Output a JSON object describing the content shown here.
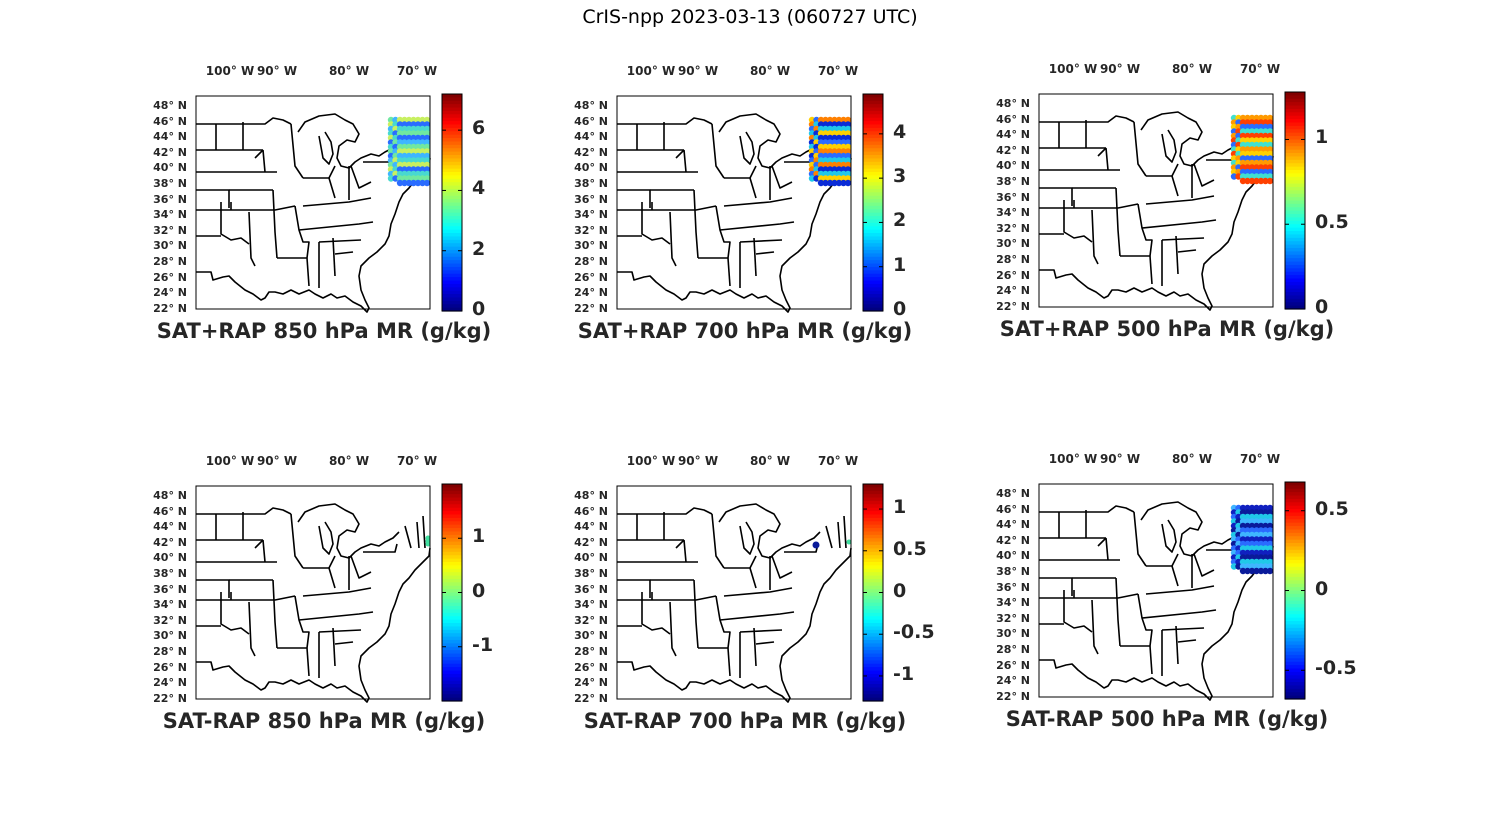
{
  "figure_title": "CrIS-npp 2023-03-13 (060727 UTC)",
  "lon_labels": [
    "100° W",
    "90° W",
    "80° W",
    "70° W"
  ],
  "lat_labels": [
    "48° N",
    "46° N",
    "44° N",
    "42° N",
    "40° N",
    "38° N",
    "36° N",
    "34° N",
    "32° N",
    "30° N",
    "28° N",
    "26° N",
    "24° N",
    "22° N"
  ],
  "colormap": "jet",
  "panels": [
    {
      "title": "SAT+RAP 850 hPa MR (g/kg)",
      "cb_ticks": [
        "6",
        "4",
        "2",
        "0"
      ],
      "cb_range": [
        0,
        7.2
      ],
      "cb_tick_values": [
        6,
        4,
        2,
        0
      ],
      "overlay": "swath",
      "overlay_colors": [
        "#2a6cff",
        "#3fb6ff",
        "#48d9d0",
        "#70e8a0",
        "#c8f060"
      ]
    },
    {
      "title": "SAT+RAP 700 hPa MR (g/kg)",
      "cb_ticks": [
        "4",
        "3",
        "2",
        "1",
        "0"
      ],
      "cb_range": [
        0,
        4.9
      ],
      "cb_tick_values": [
        4,
        3,
        2,
        1,
        0
      ],
      "overlay": "swath",
      "overlay_colors": [
        "#0a2bd6",
        "#2a6cff",
        "#20c8e8",
        "#ffd000",
        "#ff8000"
      ]
    },
    {
      "title": "SAT+RAP 500 hPa MR (g/kg)",
      "cb_ticks": [
        "1",
        "0.5",
        "0"
      ],
      "cb_range": [
        0,
        1.28
      ],
      "cb_tick_values": [
        1,
        0.5,
        0
      ],
      "overlay": "swath",
      "overlay_colors": [
        "#ff4000",
        "#ffd000",
        "#2a6cff",
        "#40e0d0",
        "#ff9a00"
      ]
    },
    {
      "title": "SAT-RAP 850 hPa MR (g/kg)",
      "cb_ticks": [
        "1",
        "0",
        "-1"
      ],
      "cb_range": [
        -2,
        2
      ],
      "cb_tick_values": [
        1,
        0,
        -1
      ],
      "overlay": "edge",
      "overlay_colors": [
        "#40e0a0"
      ]
    },
    {
      "title": "SAT-RAP 700 hPa MR (g/kg)",
      "cb_ticks": [
        "1",
        "0.5",
        "0",
        "-0.5",
        "-1"
      ],
      "cb_range": [
        -1.3,
        1.3
      ],
      "cb_tick_values": [
        1,
        0.5,
        0,
        -0.5,
        -1
      ],
      "overlay": "dot",
      "overlay_colors": [
        "#0a1a9a",
        "#40e0a0"
      ]
    },
    {
      "title": "SAT-RAP 500 hPa MR (g/kg)",
      "cb_ticks": [
        "0.5",
        "0",
        "-0.5"
      ],
      "cb_range": [
        -0.68,
        0.68
      ],
      "cb_tick_values": [
        0.5,
        0,
        -0.5
      ],
      "overlay": "swath",
      "overlay_colors": [
        "#0a1a9a",
        "#2a6cff",
        "#20c8e8",
        "#3fb6ff",
        "#1020c0"
      ]
    }
  ]
}
